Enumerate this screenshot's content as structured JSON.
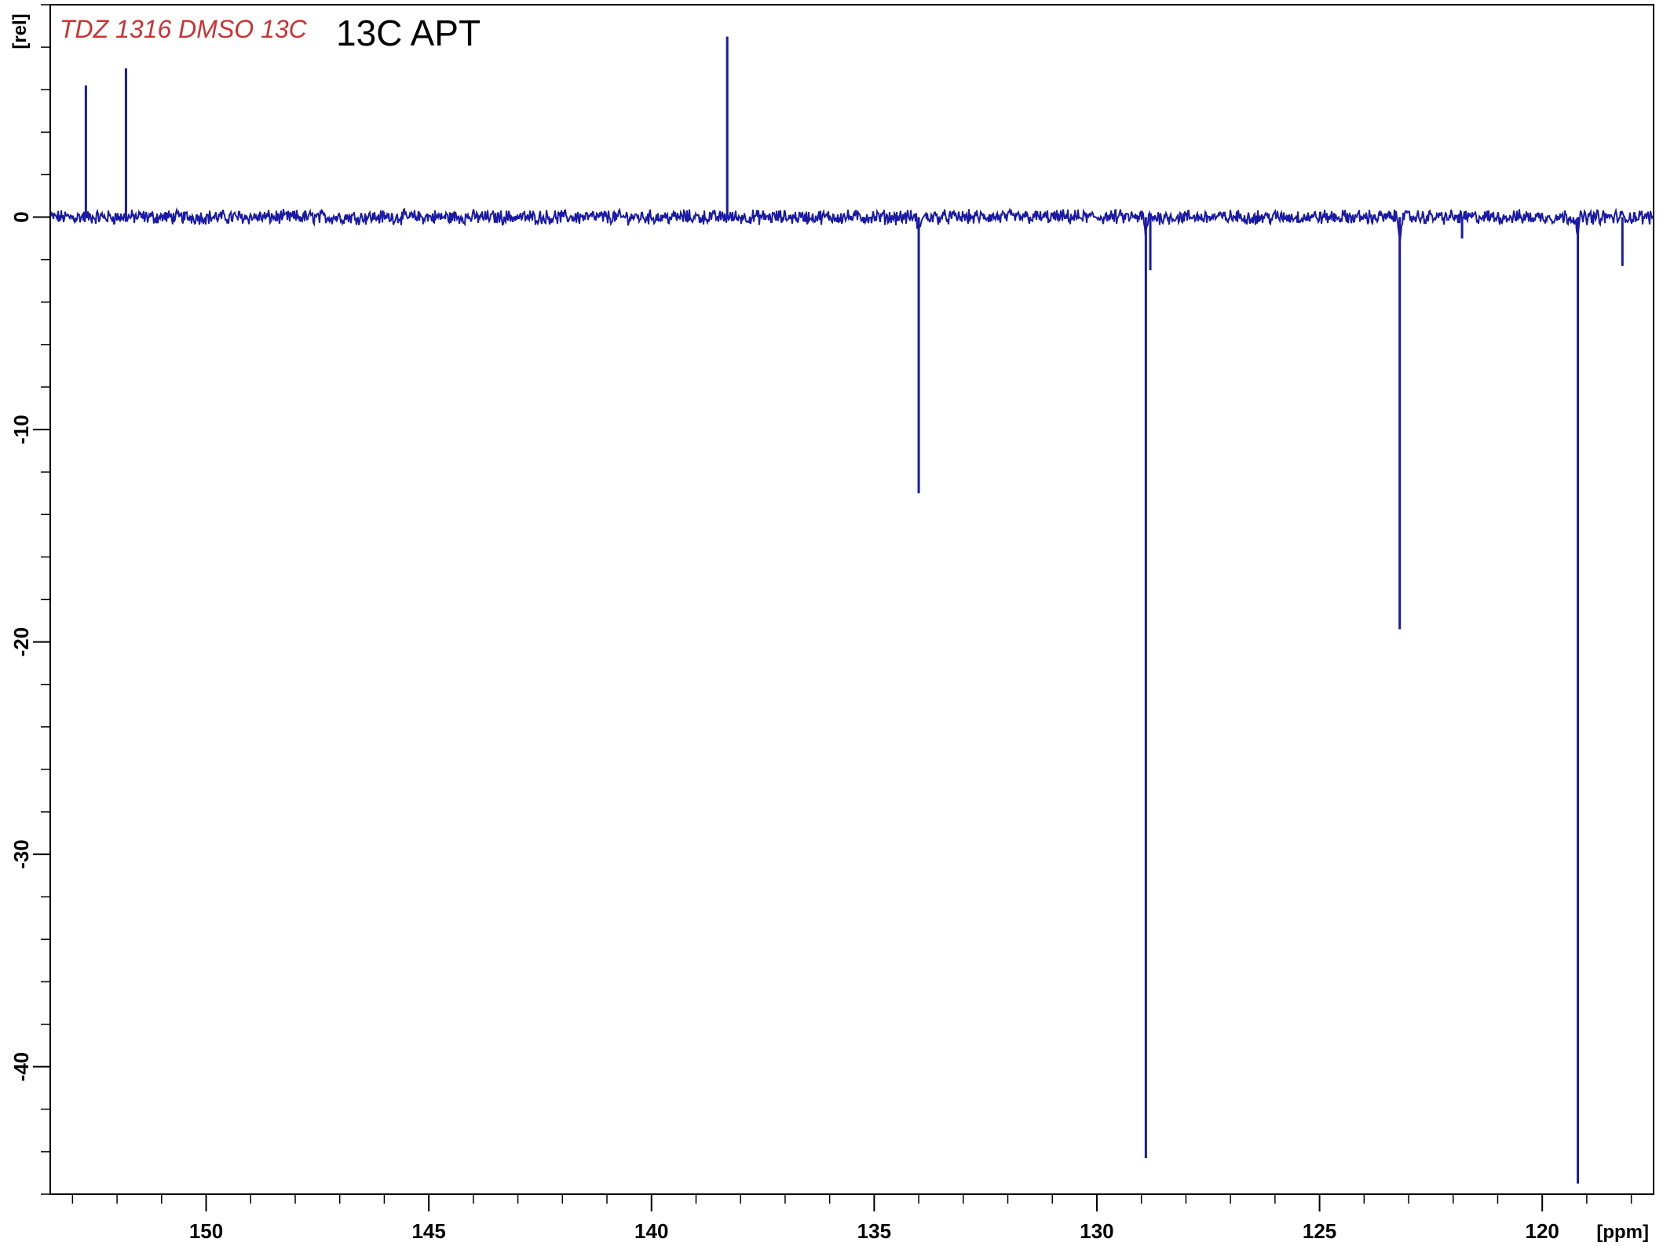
{
  "chart_data": {
    "type": "line",
    "title": "13C APT",
    "sample_label": "TDZ 1316 DMSO 13C",
    "xlabel": "[ppm]",
    "ylabel": "[rel]",
    "x_reversed": true,
    "xlim": [
      153.5,
      117.5
    ],
    "ylim": [
      -46,
      10
    ],
    "x_major_ticks": [
      150,
      145,
      140,
      135,
      130,
      125,
      120
    ],
    "x_minor_step": 1,
    "y_major_ticks": [
      0,
      -10,
      -20,
      -30,
      -40
    ],
    "y_tick_labels": [
      "0",
      "-10",
      "-20",
      "-30",
      "-40"
    ],
    "y_minor_step": 2,
    "grid": false,
    "baseline": 0,
    "series": [
      {
        "color": "#1a1aa6",
        "peaks": [
          {
            "ppm": 152.7,
            "intensity": 6.2
          },
          {
            "ppm": 151.8,
            "intensity": 7.0
          },
          {
            "ppm": 138.3,
            "intensity": 8.5
          },
          {
            "ppm": 134.0,
            "intensity": -13.0
          },
          {
            "ppm": 128.9,
            "intensity": -44.3
          },
          {
            "ppm": 128.8,
            "intensity": -2.5
          },
          {
            "ppm": 123.2,
            "intensity": -19.4
          },
          {
            "ppm": 121.8,
            "intensity": -1.0
          },
          {
            "ppm": 119.2,
            "intensity": -45.5
          },
          {
            "ppm": 118.2,
            "intensity": -2.3
          }
        ]
      }
    ]
  },
  "colors": {
    "spectrum": "#1a1aa6",
    "sample_label": "#cc3333",
    "axis": "#000000"
  }
}
